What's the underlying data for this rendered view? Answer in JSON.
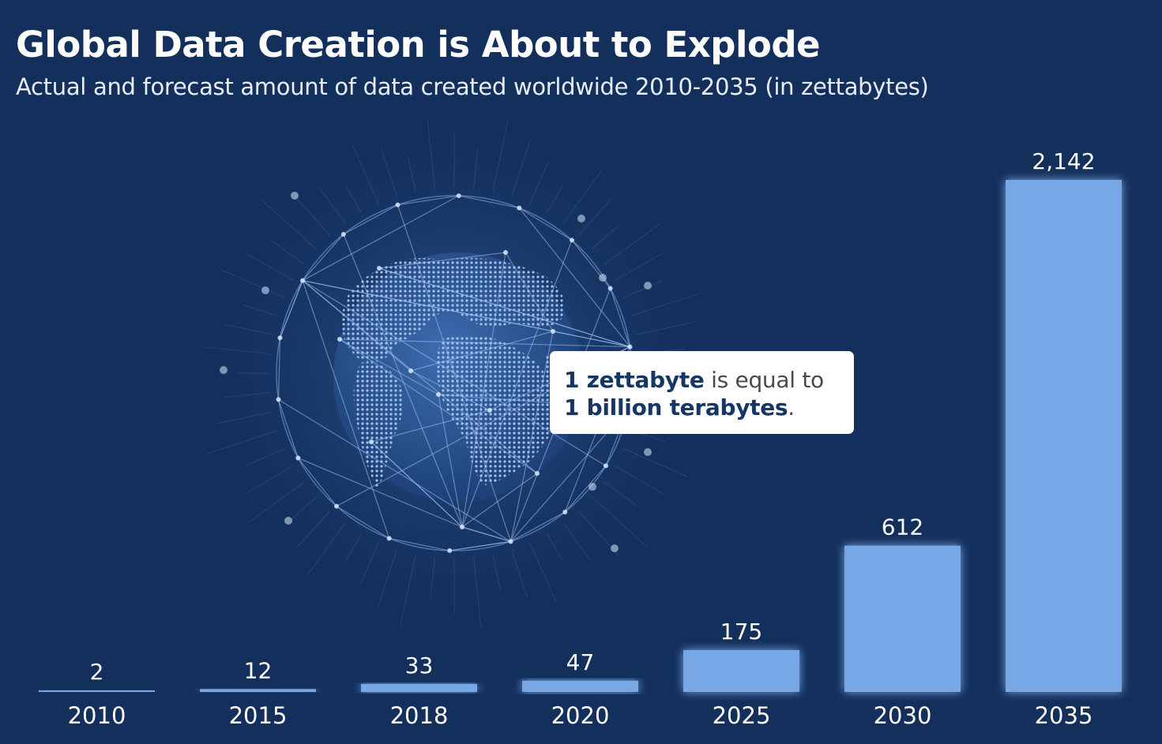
{
  "header": {
    "title": "Global Data Creation is About to Explode",
    "subtitle": "Actual and forecast amount of data created worldwide 2010-2035 (in zettabytes)"
  },
  "callout": {
    "bold_1": "1 zettabyte",
    "text_1": " is equal to",
    "bold_2": "1 billion terabytes",
    "text_2": "."
  },
  "colors": {
    "background": "#132f5c",
    "bar": "#78a7e6",
    "text": "#ffffff",
    "callout_bg": "#ffffff",
    "callout_strong": "#163665"
  },
  "illustration": {
    "icon": "globe-network-icon"
  },
  "chart_data": {
    "type": "bar",
    "categories": [
      "2010",
      "2015",
      "2018",
      "2020",
      "2025",
      "2030",
      "2035"
    ],
    "values": [
      2,
      12,
      33,
      47,
      175,
      612,
      2142
    ],
    "value_labels": [
      "2",
      "12",
      "33",
      "47",
      "175",
      "612",
      "2,142"
    ],
    "title": "Global Data Creation is About to Explode",
    "subtitle": "Actual and forecast amount of data created worldwide 2010-2035 (in zettabytes)",
    "xlabel": "",
    "ylabel": "",
    "ylim": [
      0,
      2142
    ],
    "grid": false,
    "legend": "none"
  }
}
